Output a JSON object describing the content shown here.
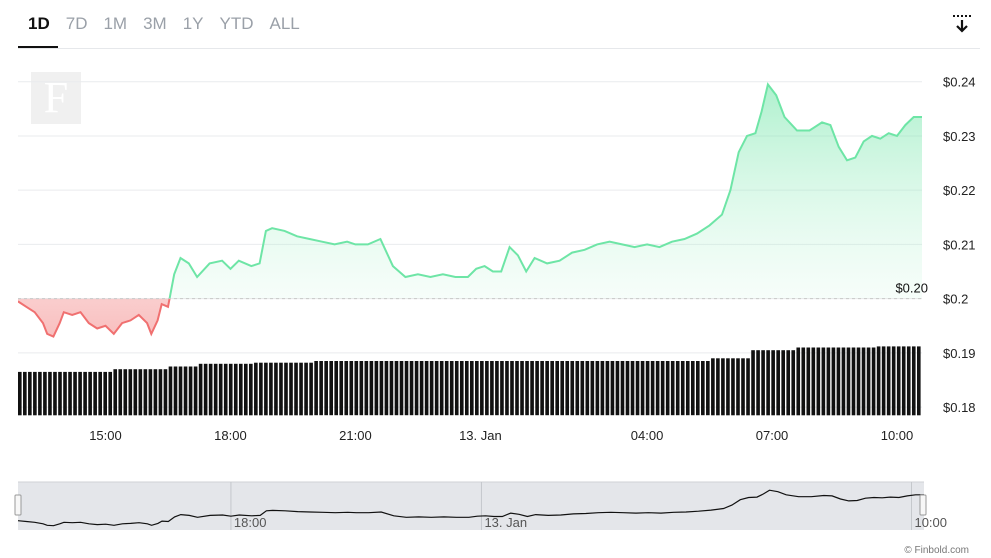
{
  "range_tabs": [
    {
      "label": "1D",
      "active": true
    },
    {
      "label": "7D",
      "active": false
    },
    {
      "label": "1M",
      "active": false
    },
    {
      "label": "3M",
      "active": false
    },
    {
      "label": "1Y",
      "active": false
    },
    {
      "label": "YTD",
      "active": false
    },
    {
      "label": "ALL",
      "active": false
    }
  ],
  "download_icon": "download-icon",
  "logo_icon": "finbold-f-logo",
  "credit": "© Finbold.com",
  "colors": {
    "up_line": "#6ee5a6",
    "up_fill": "#c9f5dd",
    "down_line": "#f07070",
    "down_fill": "#fbd6d6",
    "volume": "#111111",
    "navigator_fill": "#e4e6ea",
    "grid": "#e9ebee"
  },
  "chart_data": {
    "type": "area",
    "baseline": 0.2,
    "baseline_label": "$0.20",
    "y_ticks": [
      0.18,
      0.19,
      0.2,
      0.21,
      0.22,
      0.23,
      0.24
    ],
    "y_tick_labels": [
      "$0.18",
      "$0.19",
      "$0.2",
      "$0.21",
      "$0.22",
      "$0.23",
      "$0.24"
    ],
    "ylim": [
      0.178,
      0.244
    ],
    "x_range_hours": [
      12.9,
      34.6
    ],
    "x_ticks": [
      {
        "hour": 15,
        "label": "15:00"
      },
      {
        "hour": 18,
        "label": "18:00"
      },
      {
        "hour": 21,
        "label": "21:00"
      },
      {
        "hour": 24,
        "label": "13. Jan"
      },
      {
        "hour": 28,
        "label": "04:00"
      },
      {
        "hour": 31,
        "label": "07:00"
      },
      {
        "hour": 34,
        "label": "10:00"
      }
    ],
    "navigator_ticks": [
      {
        "hour": 18,
        "label": "18:00"
      },
      {
        "hour": 24,
        "label": "13. Jan"
      },
      {
        "hour": 34.3,
        "label": "10:00"
      }
    ],
    "price": [
      [
        12.9,
        0.1995
      ],
      [
        13.1,
        0.1985
      ],
      [
        13.3,
        0.1975
      ],
      [
        13.5,
        0.1955
      ],
      [
        13.6,
        0.1935
      ],
      [
        13.75,
        0.193
      ],
      [
        13.9,
        0.1955
      ],
      [
        14.0,
        0.1975
      ],
      [
        14.2,
        0.197
      ],
      [
        14.4,
        0.1975
      ],
      [
        14.6,
        0.1955
      ],
      [
        14.8,
        0.1945
      ],
      [
        15.0,
        0.195
      ],
      [
        15.2,
        0.1935
      ],
      [
        15.4,
        0.1955
      ],
      [
        15.6,
        0.196
      ],
      [
        15.8,
        0.197
      ],
      [
        16.0,
        0.1955
      ],
      [
        16.1,
        0.1935
      ],
      [
        16.25,
        0.196
      ],
      [
        16.35,
        0.199
      ],
      [
        16.5,
        0.1985
      ],
      [
        16.65,
        0.2045
      ],
      [
        16.8,
        0.2075
      ],
      [
        17.0,
        0.2065
      ],
      [
        17.2,
        0.204
      ],
      [
        17.5,
        0.2065
      ],
      [
        17.8,
        0.207
      ],
      [
        18.0,
        0.2055
      ],
      [
        18.2,
        0.207
      ],
      [
        18.5,
        0.206
      ],
      [
        18.7,
        0.2065
      ],
      [
        18.85,
        0.2125
      ],
      [
        19.0,
        0.213
      ],
      [
        19.3,
        0.2125
      ],
      [
        19.6,
        0.2115
      ],
      [
        19.9,
        0.211
      ],
      [
        20.2,
        0.2105
      ],
      [
        20.5,
        0.21
      ],
      [
        20.8,
        0.2105
      ],
      [
        21.0,
        0.21
      ],
      [
        21.3,
        0.21
      ],
      [
        21.6,
        0.211
      ],
      [
        21.9,
        0.206
      ],
      [
        22.2,
        0.204
      ],
      [
        22.5,
        0.2045
      ],
      [
        22.8,
        0.204
      ],
      [
        23.1,
        0.2045
      ],
      [
        23.4,
        0.204
      ],
      [
        23.7,
        0.204
      ],
      [
        23.9,
        0.2055
      ],
      [
        24.1,
        0.206
      ],
      [
        24.3,
        0.205
      ],
      [
        24.5,
        0.205
      ],
      [
        24.7,
        0.2095
      ],
      [
        24.9,
        0.208
      ],
      [
        25.1,
        0.205
      ],
      [
        25.3,
        0.2075
      ],
      [
        25.6,
        0.2065
      ],
      [
        25.9,
        0.207
      ],
      [
        26.2,
        0.2085
      ],
      [
        26.5,
        0.209
      ],
      [
        26.8,
        0.21
      ],
      [
        27.1,
        0.2105
      ],
      [
        27.4,
        0.21
      ],
      [
        27.7,
        0.2095
      ],
      [
        28.0,
        0.21
      ],
      [
        28.3,
        0.2095
      ],
      [
        28.6,
        0.2105
      ],
      [
        28.9,
        0.211
      ],
      [
        29.2,
        0.212
      ],
      [
        29.5,
        0.2135
      ],
      [
        29.8,
        0.2155
      ],
      [
        30.0,
        0.22
      ],
      [
        30.2,
        0.227
      ],
      [
        30.4,
        0.23
      ],
      [
        30.6,
        0.2305
      ],
      [
        30.75,
        0.2345
      ],
      [
        30.9,
        0.2395
      ],
      [
        31.1,
        0.2375
      ],
      [
        31.3,
        0.2335
      ],
      [
        31.6,
        0.231
      ],
      [
        31.9,
        0.231
      ],
      [
        32.2,
        0.2325
      ],
      [
        32.4,
        0.232
      ],
      [
        32.6,
        0.228
      ],
      [
        32.8,
        0.2255
      ],
      [
        33.0,
        0.226
      ],
      [
        33.2,
        0.229
      ],
      [
        33.4,
        0.23
      ],
      [
        33.6,
        0.2295
      ],
      [
        33.8,
        0.2305
      ],
      [
        34.0,
        0.23
      ],
      [
        34.2,
        0.232
      ],
      [
        34.4,
        0.2335
      ],
      [
        34.6,
        0.2335
      ]
    ],
    "volume_level": [
      [
        12.9,
        0.1865
      ],
      [
        15.1,
        0.187
      ],
      [
        16.5,
        0.1875
      ],
      [
        17.2,
        0.188
      ],
      [
        18.5,
        0.1882
      ],
      [
        20.0,
        0.1885
      ],
      [
        27.5,
        0.1885
      ],
      [
        29.5,
        0.189
      ],
      [
        30.5,
        0.1905
      ],
      [
        31.5,
        0.191
      ],
      [
        33.5,
        0.1912
      ],
      [
        34.6,
        0.1912
      ]
    ],
    "volume_floor": 0.1785
  }
}
